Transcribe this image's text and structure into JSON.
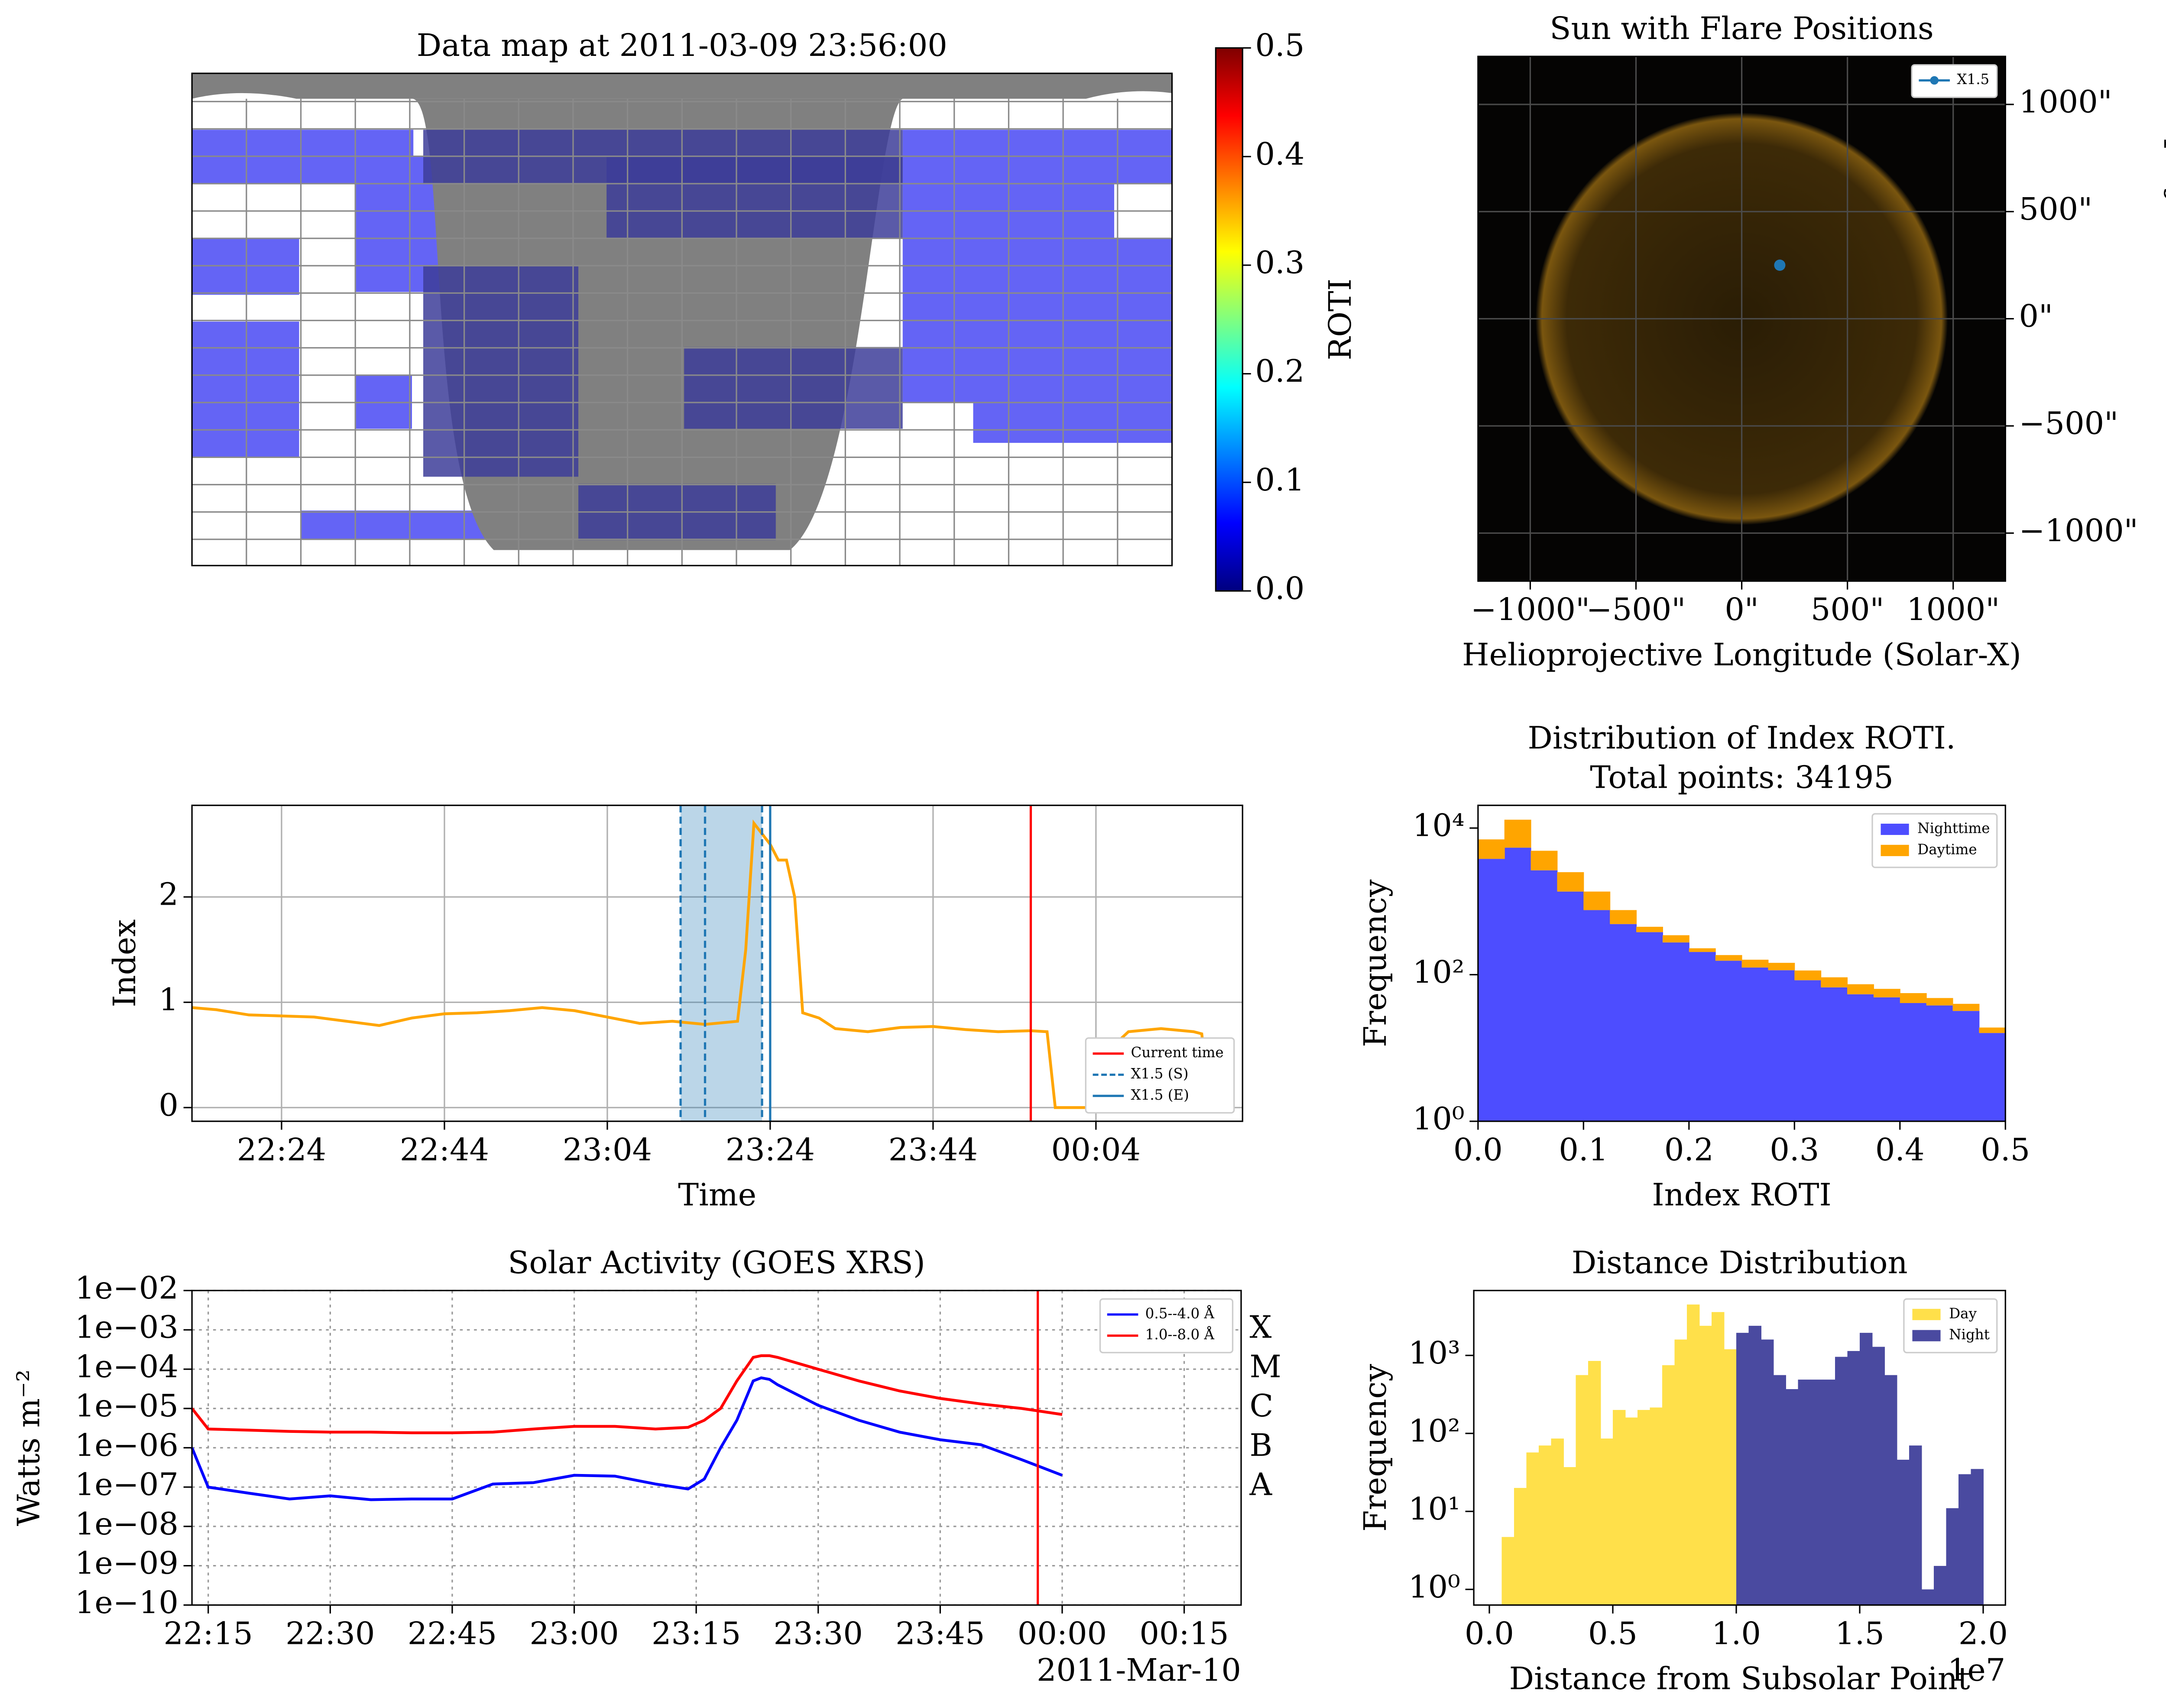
{
  "chart_data": [
    {
      "type": "map",
      "title": "Data map at 2011-03-09 23:56:00",
      "colorbar": {
        "label": "ROTI",
        "lim": [
          0,
          0.5
        ],
        "ticks": [
          {
            "value": 0,
            "label": "0.0"
          },
          0.1,
          0.2,
          0.3,
          0.4,
          0.5
        ]
      }
    },
    {
      "type": "scatter",
      "title": "Sun with Flare Positions",
      "xlabel": "Helioprojective Longitude (Solar-X)",
      "ylabel": "Helioprojective Latitude (Solar-Y)",
      "xlim": [
        -1247,
        1247
      ],
      "ylim": [
        -1224,
        1224
      ],
      "xticks": [
        {
          "value": -1000,
          "label": "−1000\""
        },
        {
          "value": -500,
          "label": "−500\""
        },
        {
          "value": 0,
          "label": "0\""
        },
        {
          "value": 500,
          "label": "500\""
        },
        {
          "value": 1000,
          "label": "1000\""
        }
      ],
      "yticks": [
        {
          "value": -1000,
          "label": "−1000\""
        },
        {
          "value": -500,
          "label": "−500\""
        },
        {
          "value": 0,
          "label": "0\""
        },
        {
          "value": 500,
          "label": "500\""
        },
        {
          "value": 1000,
          "label": "1000\""
        }
      ],
      "y_axis_side": "right",
      "grid": true,
      "grid_color": "#4a4a4a",
      "legend": "upper right",
      "series": [
        {
          "name": "X1.5",
          "color": "#1f77b4",
          "x": [
            180
          ],
          "values": [
            250
          ]
        }
      ]
    },
    {
      "type": "line",
      "xlabel": "Time",
      "ylabel": "Index",
      "color": "#ffa500",
      "x": [
        "22:13",
        "22:16",
        "22:20",
        "22:24",
        "22:28",
        "22:32",
        "22:36",
        "22:40",
        "22:44",
        "22:48",
        "22:52",
        "22:56",
        "23:00",
        "23:04",
        "23:08",
        "23:12",
        "23:16",
        "23:20",
        "23:21",
        "23:22",
        "23:24",
        "23:25",
        "23:26",
        "23:27",
        "23:28",
        "23:30",
        "23:32",
        "23:36",
        "23:40",
        "23:44",
        "23:48",
        "23:52",
        "23:56",
        "23:58",
        "23:59",
        "00:02",
        "00:04",
        "00:06",
        "00:07",
        "00:08",
        "00:12",
        "00:16",
        "00:17",
        "00:18"
      ],
      "values": [
        0.95,
        0.93,
        0.88,
        0.87,
        0.86,
        0.82,
        0.78,
        0.85,
        0.89,
        0.9,
        0.92,
        0.95,
        0.92,
        0.86,
        0.8,
        0.82,
        0.79,
        0.82,
        1.5,
        2.7,
        2.5,
        2.35,
        2.35,
        2.0,
        0.9,
        0.85,
        0.75,
        0.72,
        0.76,
        0.77,
        0.74,
        0.72,
        0.73,
        0.72,
        0.0,
        0.0,
        0.0,
        0.0,
        0.65,
        0.72,
        0.75,
        0.72,
        0.7,
        0.0
      ],
      "xlim": [
        "22:13",
        "00:22"
      ],
      "xticks": [
        "22:24",
        "22:44",
        "23:04",
        "23:24",
        "23:44",
        "00:04"
      ],
      "ylim": [
        -0.13,
        2.87
      ],
      "yticks": [
        0,
        1,
        2
      ],
      "grid": true,
      "grid_color": "#b0b0b0",
      "legend": "lower right",
      "span": [
        "23:13",
        "23:23"
      ],
      "vlines": [
        {
          "name": "Current time",
          "color": "#ff0000",
          "x": [
            "23:56"
          ]
        },
        {
          "name": "X1.5 (S)",
          "color": "#1f77b4",
          "dashed": true,
          "x": [
            "23:13",
            "23:16",
            "23:23"
          ]
        },
        {
          "name": "X1.5 (E)",
          "color": "#1f77b4",
          "x": [
            "23:24"
          ]
        }
      ]
    },
    {
      "type": "histogram",
      "title": [
        "Distribution of Index ROTI.",
        "Total points: 34195"
      ],
      "xlabel": "Index ROTI",
      "ylabel": "Frequency",
      "log_y": true,
      "stacked": true,
      "bins": [
        0,
        0.025,
        0.05,
        0.075,
        0.1,
        0.125,
        0.15,
        0.175,
        0.2,
        0.225,
        0.25,
        0.275,
        0.3,
        0.325,
        0.35,
        0.375,
        0.4,
        0.425,
        0.45,
        0.475,
        0.5
      ],
      "series": [
        {
          "name": "Nighttime",
          "color": "#4d4dff",
          "values": [
            3800,
            5400,
            2650,
            1360,
            760,
            490,
            380,
            275,
            204,
            155,
            125,
            115,
            84,
            67,
            54,
            49,
            41,
            38,
            32,
            16
          ]
        },
        {
          "name": "Daytime",
          "color": "#ffa500",
          "values": [
            3200,
            7600,
            2250,
            1140,
            600,
            270,
            70,
            70,
            25,
            30,
            35,
            30,
            30,
            25,
            20,
            15,
            15,
            10,
            8,
            3
          ]
        }
      ],
      "xlim": [
        0,
        0.5
      ],
      "xticks": [
        {
          "value": 0,
          "label": "0.0"
        },
        0.1,
        0.2,
        0.3,
        0.4,
        0.5
      ],
      "ylim": [
        1,
        20400
      ],
      "yticks": [
        {
          "value": 1,
          "label": "10⁰"
        },
        {
          "value": 100,
          "label": "10²"
        },
        {
          "value": 10000,
          "label": "10⁴"
        }
      ],
      "legend": "upper right"
    },
    {
      "type": "line",
      "title": "Solar Activity (GOES XRS)",
      "ylabel": "Watts m⁻²",
      "log_y": true,
      "x": [
        "22:13",
        "22:15",
        "22:20",
        "22:25",
        "22:30",
        "22:35",
        "22:40",
        "22:45",
        "22:50",
        "22:55",
        "23:00",
        "23:05",
        "23:10",
        "23:14",
        "23:16",
        "23:18",
        "23:20",
        "23:22",
        "23:23",
        "23:24",
        "23:25",
        "23:30",
        "23:35",
        "23:40",
        "23:45",
        "23:50",
        "23:55",
        "00:00"
      ],
      "series": [
        {
          "name": "0.5--4.0 Å",
          "color": "#0000ff",
          "values": [
            1e-06,
            1e-07,
            7e-08,
            5e-08,
            6e-08,
            4.8e-08,
            5e-08,
            5e-08,
            1.2e-07,
            1.3e-07,
            2e-07,
            1.9e-07,
            1.2e-07,
            9e-08,
            1.6e-07,
            1e-06,
            5e-06,
            5e-05,
            6e-05,
            5.5e-05,
            4e-05,
            1.2e-05,
            5e-06,
            2.5e-06,
            1.6e-06,
            1.2e-06,
            5e-07,
            2e-07
          ]
        },
        {
          "name": "1.0--8.0 Å",
          "color": "#ff0000",
          "values": [
            1e-05,
            3e-06,
            2.8e-06,
            2.6e-06,
            2.5e-06,
            2.5e-06,
            2.4e-06,
            2.4e-06,
            2.5e-06,
            3e-06,
            3.5e-06,
            3.5e-06,
            3e-06,
            3.3e-06,
            5e-06,
            1e-05,
            5e-05,
            0.0002,
            0.00022,
            0.00022,
            0.0002,
            0.0001,
            5e-05,
            2.8e-05,
            1.8e-05,
            1.3e-05,
            1e-05,
            7e-06
          ]
        }
      ],
      "xlim": [
        "22:13",
        "00:22"
      ],
      "xticks": [
        "22:15",
        "22:30",
        "22:45",
        "23:00",
        "23:15",
        "23:30",
        "23:45",
        "00:00",
        "00:15"
      ],
      "x_offset_label": "2011-Mar-10",
      "ylim": [
        1e-10,
        0.01
      ],
      "yticks": [
        {
          "value": 1e-10,
          "label": "1e−10"
        },
        {
          "value": 1e-09,
          "label": "1e−09"
        },
        {
          "value": 1e-08,
          "label": "1e−08"
        },
        {
          "value": 1e-07,
          "label": "1e−07"
        },
        {
          "value": 1e-06,
          "label": "1e−06"
        },
        {
          "value": 1e-05,
          "label": "1e−05"
        },
        {
          "value": 0.0001,
          "label": "1e−04"
        },
        {
          "value": 0.001,
          "label": "1e−03"
        },
        {
          "value": 0.01,
          "label": "1e−02"
        }
      ],
      "grid": true,
      "grid_style": "dotted",
      "grid_color": "#999999",
      "legend": "upper right",
      "vlines": [
        {
          "color": "#ff0000",
          "x": [
            "23:57"
          ]
        }
      ],
      "flare_classes": [
        {
          "value": 0.001,
          "label": "X"
        },
        {
          "value": 0.0001,
          "label": "M"
        },
        {
          "value": 1e-05,
          "label": "C"
        },
        {
          "value": 1e-06,
          "label": "B"
        },
        {
          "value": 1e-07,
          "label": "A"
        }
      ]
    },
    {
      "type": "histogram",
      "title": "Distance Distribution",
      "xlabel": "Distance from Subsolar Point",
      "x_offset_label": "1e7",
      "ylabel": "Frequency",
      "log_y": true,
      "series": [
        {
          "name": "Day",
          "color": "#ffe04a",
          "bins": [
            0.05,
            0.1,
            0.15,
            0.2,
            0.25,
            0.3,
            0.35,
            0.4,
            0.45,
            0.5,
            0.55,
            0.6,
            0.65,
            0.7,
            0.75,
            0.8,
            0.85,
            0.9,
            0.95,
            1.0
          ],
          "values": [
            4.7,
            20,
            57,
            70,
            86,
            37,
            560,
            850,
            86,
            200,
            160,
            200,
            215,
            750,
            1600,
            4500,
            2400,
            3600,
            1200
          ]
        },
        {
          "name": "Night",
          "color": "#4a4aa0",
          "bins": [
            1.0,
            1.05,
            1.1,
            1.15,
            1.2,
            1.25,
            1.3,
            1.35,
            1.4,
            1.45,
            1.5,
            1.55,
            1.6,
            1.65,
            1.7,
            1.75,
            1.8,
            1.85,
            1.9,
            1.95,
            2.0
          ],
          "values": [
            1950,
            2400,
            1600,
            560,
            370,
            490,
            490,
            490,
            960,
            1140,
            1950,
            1290,
            560,
            46,
            70,
            1,
            2,
            11,
            30,
            35
          ]
        }
      ],
      "xlim": [
        -0.063,
        2.09
      ],
      "xticks": [
        {
          "value": 0,
          "label": "0.0"
        },
        0.5,
        {
          "value": 1,
          "label": "1.0"
        },
        1.5,
        {
          "value": 2,
          "label": "2.0"
        }
      ],
      "ylim": [
        0.63,
        6800
      ],
      "yticks": [
        {
          "value": 1,
          "label": "10⁰"
        },
        {
          "value": 10,
          "label": "10¹"
        },
        {
          "value": 100,
          "label": "10²"
        },
        {
          "value": 1000,
          "label": "10³"
        }
      ],
      "legend": "upper right"
    }
  ]
}
